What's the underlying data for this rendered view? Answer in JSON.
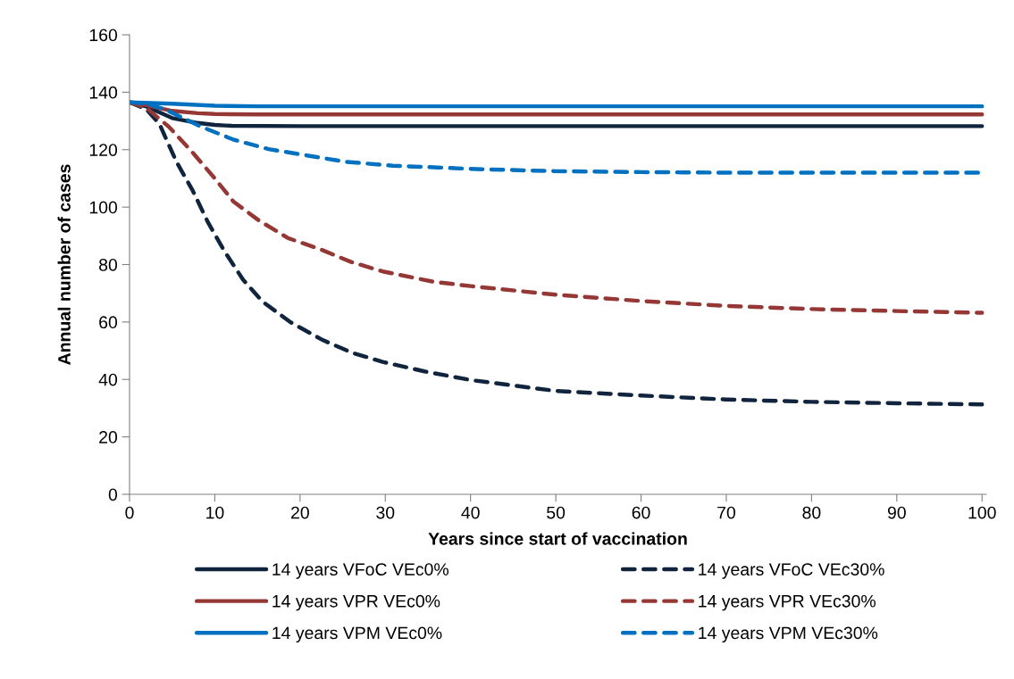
{
  "chart_data": {
    "type": "line",
    "xlabel": "Years since start of vaccination",
    "ylabel": "Annual number of cases",
    "xlim": [
      0,
      100.5
    ],
    "xticks": [
      0,
      10,
      20,
      30,
      40,
      50,
      60,
      70,
      80,
      90,
      100
    ],
    "ylim": [
      0,
      160
    ],
    "yticks": [
      0,
      20,
      40,
      60,
      80,
      100,
      120,
      140,
      160
    ],
    "grid": false,
    "legend": "bottom",
    "marker": "none",
    "series": [
      {
        "name": "14 years VFoC VEc0%",
        "color": "#10243e",
        "line_style": "solid",
        "x": [
          0,
          2,
          5,
          8,
          10,
          12,
          20,
          40,
          60,
          80,
          100
        ],
        "values": [
          136.5,
          135,
          131,
          129.3,
          128.6,
          128.3,
          128.2,
          128.2,
          128.2,
          128.2,
          128.2
        ]
      },
      {
        "name": "14 years VFoC VEc30%",
        "color": "#10243e",
        "line_style": "dashed",
        "x": [
          0,
          2,
          3.5,
          5.5,
          7.4,
          9.2,
          11.1,
          13.3,
          15.6,
          18.9,
          22.6,
          26,
          29.7,
          34.6,
          40,
          50,
          60,
          70,
          80,
          90,
          100
        ],
        "values": [
          136.5,
          134,
          129,
          115.8,
          105.8,
          94.7,
          84.8,
          74.8,
          67.1,
          59.9,
          53.8,
          49.4,
          46.1,
          42.8,
          39.8,
          36,
          34.4,
          33,
          32.2,
          31.7,
          31.3
        ]
      },
      {
        "name": "14 years VPR VEc0%",
        "color": "#953735",
        "line_style": "solid",
        "x": [
          0,
          2,
          5,
          8,
          10,
          15,
          40,
          70,
          100
        ],
        "values": [
          136.5,
          135.5,
          133.5,
          132.7,
          132.4,
          132.3,
          132.3,
          132.3,
          132.3
        ]
      },
      {
        "name": "14 years VPR VEc30%",
        "color": "#953735",
        "line_style": "dashed",
        "x": [
          0,
          2,
          4.6,
          7.4,
          10,
          12.2,
          15.2,
          18.6,
          22.3,
          26,
          29.7,
          35.7,
          40,
          50,
          60,
          70,
          80,
          90,
          100
        ],
        "values": [
          136.5,
          134.5,
          128,
          119,
          110,
          101.9,
          95.3,
          89.2,
          85.4,
          80.9,
          77.6,
          74,
          72.5,
          69.5,
          67.3,
          65.6,
          64.5,
          63.8,
          63.2
        ]
      },
      {
        "name": "14 years VPM VEc0%",
        "color": "#0070c0",
        "line_style": "solid",
        "x": [
          0,
          5,
          10,
          15,
          40,
          70,
          100
        ],
        "values": [
          136.5,
          136,
          135.3,
          135.1,
          135.1,
          135.1,
          135.1
        ]
      },
      {
        "name": "14 years VPM VEc30%",
        "color": "#0070c0",
        "line_style": "dashed",
        "x": [
          0,
          2,
          4.2,
          8.4,
          12.2,
          16.3,
          20.8,
          25.3,
          30.9,
          36.2,
          40,
          50,
          60,
          70,
          80,
          90,
          100
        ],
        "values": [
          136.5,
          136,
          134,
          128,
          123.5,
          120.2,
          118,
          115.8,
          114.4,
          113.8,
          113.3,
          112.5,
          112.2,
          112,
          112,
          112,
          112
        ]
      }
    ]
  }
}
